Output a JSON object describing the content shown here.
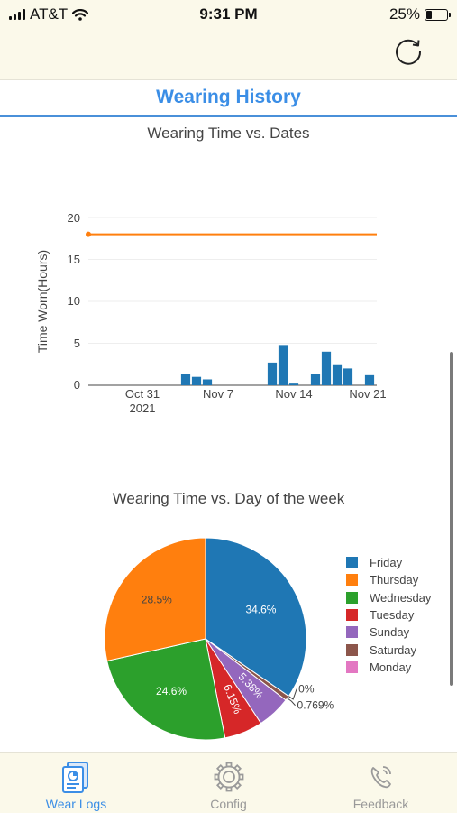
{
  "status_bar": {
    "carrier": "AT&T",
    "time": "9:31 PM",
    "battery_percent": "25%"
  },
  "top_bar": {
    "refresh_icon": "refresh-icon"
  },
  "header": {
    "title": "Wearing History"
  },
  "chart1": {
    "title": "Wearing Time vs. Dates",
    "ylabel": "Time Worn(Hours)",
    "y_ticks": [
      "0",
      "5",
      "10",
      "15",
      "20"
    ],
    "x_ticks": [
      {
        "label": "Oct 31",
        "sublabel": "2021"
      },
      {
        "label": "Nov 7",
        "sublabel": ""
      },
      {
        "label": "Nov 14",
        "sublabel": ""
      },
      {
        "label": "Nov 21",
        "sublabel": ""
      }
    ]
  },
  "chart2": {
    "title": "Wearing Time vs. Day of the week"
  },
  "chart_data": [
    {
      "type": "bar",
      "title": "Wearing Time vs. Dates",
      "xlabel": "",
      "ylabel": "Time Worn(Hours)",
      "ylim": [
        0,
        20
      ],
      "x_range": [
        "2021-10-26",
        "2021-11-21"
      ],
      "bar_color": "#1f77b4",
      "goal_line": {
        "y": 18,
        "color": "#ff7f0e",
        "start": "2021-10-26"
      },
      "x": [
        "2021-11-04",
        "2021-11-05",
        "2021-11-06",
        "2021-11-12",
        "2021-11-13",
        "2021-11-14",
        "2021-11-16",
        "2021-11-17",
        "2021-11-18",
        "2021-11-19",
        "2021-11-21"
      ],
      "values": [
        1.3,
        1.0,
        0.7,
        2.7,
        4.8,
        0.2,
        1.3,
        4.0,
        2.5,
        2.0,
        1.2
      ],
      "grid": true
    },
    {
      "type": "pie",
      "title": "Wearing Time vs. Day of the week",
      "legend_position": "right",
      "labels": [
        "Friday",
        "Thursday",
        "Wednesday",
        "Tuesday",
        "Sunday",
        "Saturday",
        "Monday"
      ],
      "values": [
        34.6,
        28.5,
        24.6,
        6.15,
        5.38,
        0.769,
        0
      ],
      "value_labels": [
        "34.6%",
        "28.5%",
        "24.6%",
        "6.15%",
        "5.38%",
        "0.769%",
        "0%"
      ],
      "colors": [
        "#1f77b4",
        "#ff7f0e",
        "#2ca02c",
        "#d62728",
        "#9467bd",
        "#8c564b",
        "#e377c2"
      ]
    }
  ],
  "tabs": [
    {
      "label": "Wear Logs",
      "icon": "wear-logs-icon",
      "active": true
    },
    {
      "label": "Config",
      "icon": "gear-icon",
      "active": false
    },
    {
      "label": "Feedback",
      "icon": "phone-icon",
      "active": false
    }
  ]
}
